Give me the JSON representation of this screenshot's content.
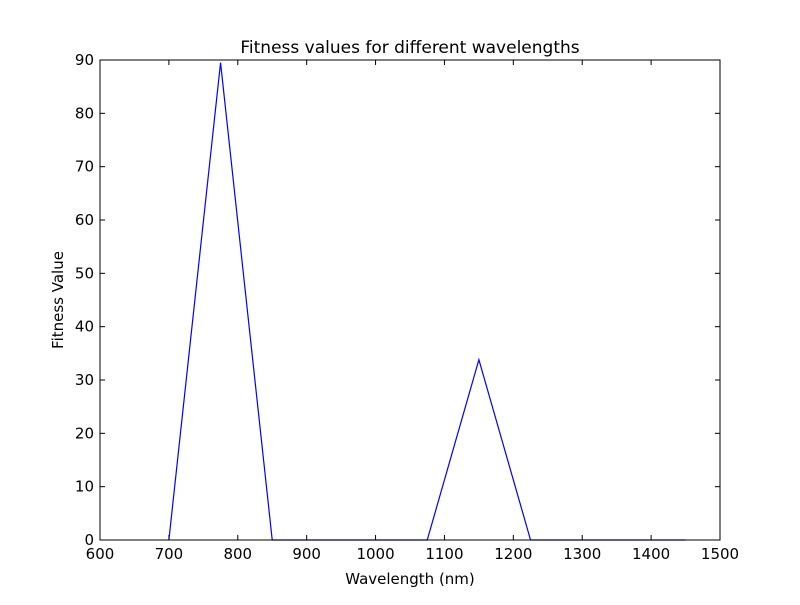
{
  "chart_data": {
    "type": "line",
    "title": "Fitness values for different wavelengths",
    "xlabel": "Wavelength (nm)",
    "ylabel": "Fitness Value",
    "xlim": [
      600,
      1500
    ],
    "ylim": [
      0,
      90
    ],
    "xticks": [
      600,
      700,
      800,
      900,
      1000,
      1100,
      1200,
      1300,
      1400,
      1500
    ],
    "yticks": [
      0,
      10,
      20,
      30,
      40,
      50,
      60,
      70,
      80,
      90
    ],
    "grid": false,
    "line_color": "#0000ff",
    "series": [
      {
        "x": [
          700,
          775,
          850,
          925,
          1000,
          1075,
          1150,
          1225,
          1300,
          1375,
          1450
        ],
        "y": [
          0,
          89.5,
          0,
          0,
          0,
          0,
          33.8,
          0,
          0,
          0,
          0
        ]
      }
    ]
  }
}
